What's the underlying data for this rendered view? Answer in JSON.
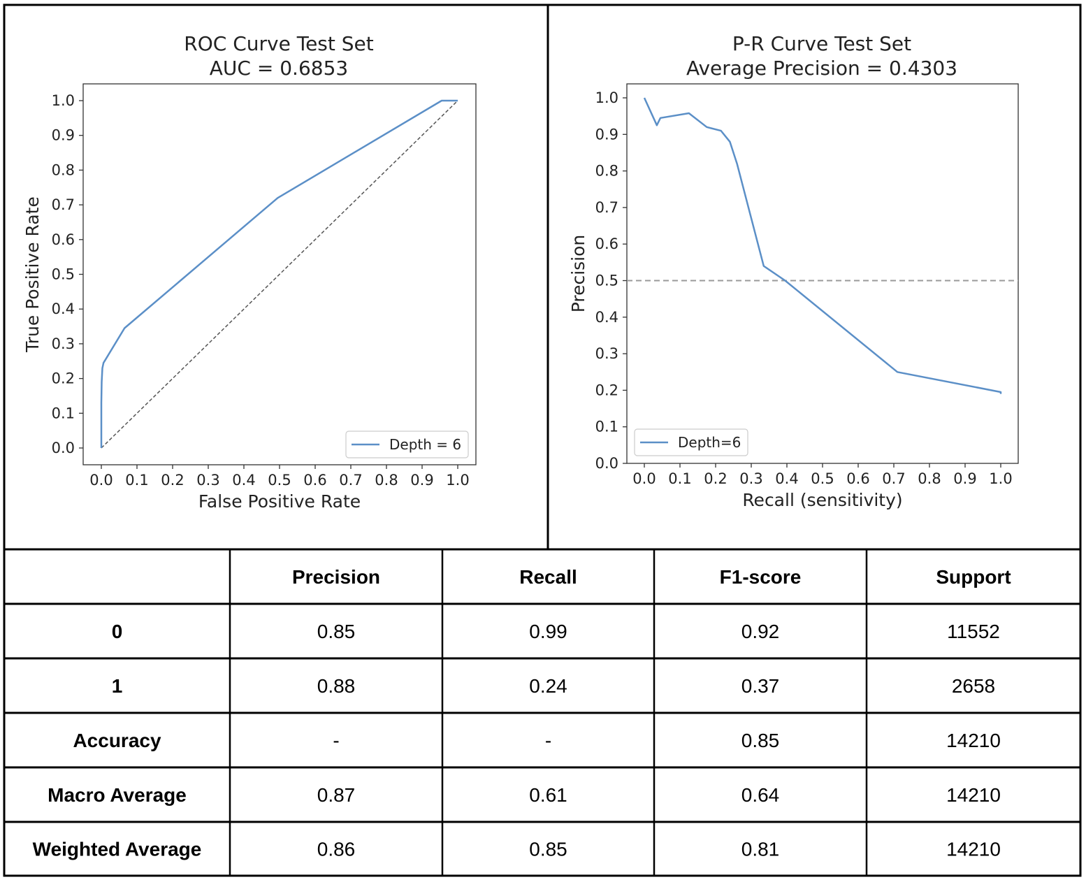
{
  "chart_data": [
    {
      "type": "line",
      "title": "ROC Curve Test Set",
      "subtitle": "AUC = 0.6853",
      "xlabel": "False Positive Rate",
      "ylabel": "True Positive Rate",
      "xlim": [
        0.0,
        1.0
      ],
      "ylim": [
        0.0,
        1.0
      ],
      "xticks": [
        "0.0",
        "0.1",
        "0.2",
        "0.3",
        "0.4",
        "0.5",
        "0.6",
        "0.7",
        "0.8",
        "0.9",
        "1.0"
      ],
      "yticks": [
        "0.0",
        "0.1",
        "0.2",
        "0.3",
        "0.4",
        "0.5",
        "0.6",
        "0.7",
        "0.8",
        "0.9",
        "1.0"
      ],
      "grid": false,
      "legend_position": "bottom-right",
      "colors": {
        "series": "#5b8fc7",
        "reference": "#555555"
      },
      "series": [
        {
          "name": "Depth = 6",
          "x": [
            0.0,
            0.0,
            0.001,
            0.003,
            0.006,
            0.012,
            0.065,
            0.495,
            0.955,
            1.0
          ],
          "y": [
            0.0,
            0.13,
            0.19,
            0.23,
            0.245,
            0.255,
            0.345,
            0.72,
            1.0,
            1.0
          ]
        }
      ],
      "reference_line": {
        "x": [
          0.0,
          1.0
        ],
        "y": [
          0.0,
          1.0
        ],
        "style": "dashed"
      }
    },
    {
      "type": "line",
      "title": "P-R Curve Test Set",
      "subtitle": "Average Precision = 0.4303",
      "xlabel": "Recall (sensitivity)",
      "ylabel": "Precision",
      "xlim": [
        0.0,
        1.0
      ],
      "ylim": [
        0.0,
        1.0
      ],
      "xticks": [
        "0.0",
        "0.1",
        "0.2",
        "0.3",
        "0.4",
        "0.5",
        "0.6",
        "0.7",
        "0.8",
        "0.9",
        "1.0"
      ],
      "yticks": [
        "0.0",
        "0.1",
        "0.2",
        "0.3",
        "0.4",
        "0.5",
        "0.6",
        "0.7",
        "0.8",
        "0.9",
        "1.0"
      ],
      "grid": false,
      "legend_position": "bottom-left",
      "colors": {
        "series": "#5b8fc7",
        "reference": "#999999"
      },
      "series": [
        {
          "name": "Depth=6",
          "x": [
            0.0,
            0.035,
            0.045,
            0.125,
            0.175,
            0.215,
            0.24,
            0.26,
            0.335,
            0.395,
            0.71,
            1.0,
            1.0
          ],
          "y": [
            1.0,
            0.925,
            0.945,
            0.958,
            0.92,
            0.91,
            0.88,
            0.82,
            0.54,
            0.5,
            0.25,
            0.195,
            0.19
          ]
        }
      ],
      "reference_line": {
        "y": 0.5,
        "style": "dashed"
      }
    },
    {
      "type": "table",
      "columns": [
        "",
        "Precision",
        "Recall",
        "F1-score",
        "Support"
      ],
      "rows": [
        [
          "0",
          "0.85",
          "0.99",
          "0.92",
          "11552"
        ],
        [
          "1",
          "0.88",
          "0.24",
          "0.37",
          "2658"
        ],
        [
          "Accuracy",
          "-",
          "-",
          "0.85",
          "14210"
        ],
        [
          "Macro Average",
          "0.87",
          "0.61",
          "0.64",
          "14210"
        ],
        [
          "Weighted Average",
          "0.86",
          "0.85",
          "0.81",
          "14210"
        ]
      ]
    }
  ]
}
